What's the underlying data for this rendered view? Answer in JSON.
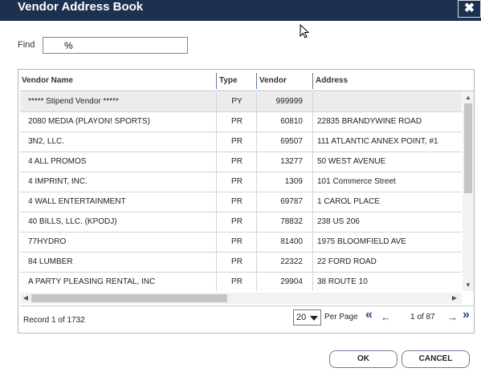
{
  "window": {
    "title": "Vendor Address Book",
    "close_glyph": "✖"
  },
  "find": {
    "label": "Find",
    "value": "%"
  },
  "table": {
    "columns": [
      "Vendor Name",
      "Type",
      "Vendor",
      "Address"
    ],
    "rows": [
      {
        "name": "***** Stipend Vendor *****",
        "type": "PY",
        "vendor": "999999",
        "address": ""
      },
      {
        "name": "2080 MEDIA (PLAYON! SPORTS)",
        "type": "PR",
        "vendor": "60810",
        "address": "22835 BRANDYWINE ROAD"
      },
      {
        "name": "3N2, LLC.",
        "type": "PR",
        "vendor": "69507",
        "address": "111 ATLANTIC ANNEX POINT, #1"
      },
      {
        "name": "4 ALL PROMOS",
        "type": "PR",
        "vendor": "13277",
        "address": "50 WEST AVENUE"
      },
      {
        "name": "4 IMPRINT, INC.",
        "type": "PR",
        "vendor": "1309",
        "address": "101 Commerce Street"
      },
      {
        "name": "4 WALL ENTERTAINMENT",
        "type": "PR",
        "vendor": "69787",
        "address": "1 CAROL PLACE"
      },
      {
        "name": "40 BILLS, LLC. (KPODJ)",
        "type": "PR",
        "vendor": "78832",
        "address": "238 US 206"
      },
      {
        "name": "77HYDRO",
        "type": "PR",
        "vendor": "81400",
        "address": "1975 BLOOMFIELD AVE"
      },
      {
        "name": "84 LUMBER",
        "type": "PR",
        "vendor": "22322",
        "address": "22 FORD ROAD"
      },
      {
        "name": "A  PARTY PLEASING RENTAL, INC",
        "type": "PR",
        "vendor": "29904",
        "address": "38 ROUTE 10"
      }
    ],
    "selected_row": 0
  },
  "pager": {
    "record_text": "Record 1 of 1732",
    "per_page_value": "20",
    "per_page_label": "Per Page",
    "page_info": "1 of 87",
    "first_glyph": "«",
    "prev_glyph": "←",
    "next_glyph": "→",
    "last_glyph": "»"
  },
  "buttons": {
    "ok": "OK",
    "cancel": "CANCEL"
  },
  "icons": [
    "close-icon",
    "mouse-cursor-icon",
    "caret-down-icon",
    "first-page-icon",
    "prev-page-icon",
    "next-page-icon",
    "last-page-icon"
  ],
  "colors": {
    "titlebar": "#1c3050",
    "nav": "#2c4b7a"
  }
}
